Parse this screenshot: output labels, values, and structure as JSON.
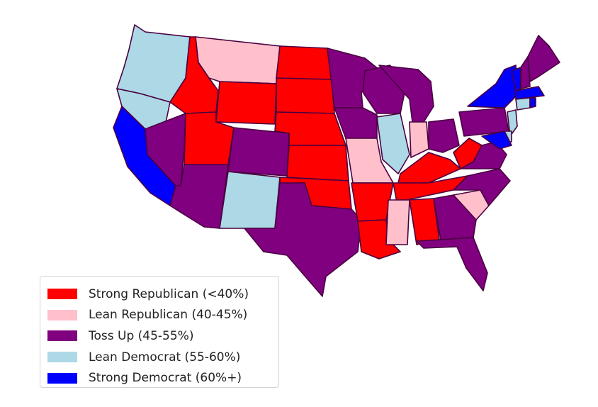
{
  "colors": {
    "strong_rep": "#ff0000",
    "lean_rep": "#ffc0cb",
    "toss_up": "#800080",
    "lean_dem": "#add8e6",
    "strong_dem": "#0000ff",
    "border": "#4a0040"
  },
  "legend": {
    "items": [
      {
        "label": "Strong Republican (<40%)",
        "color": "#ff0000"
      },
      {
        "label": "Lean Republican (40-45%)",
        "color": "#ffc0cb"
      },
      {
        "label": "Toss Up (45-55%)",
        "color": "#800080"
      },
      {
        "label": "Lean Democrat (55-60%)",
        "color": "#add8e6"
      },
      {
        "label": "Strong Democrat (60%+)",
        "color": "#0000ff"
      }
    ]
  },
  "states": {
    "WA": "lean_dem",
    "OR": "lean_dem",
    "CA": "strong_dem",
    "NV": "toss_up",
    "ID": "strong_rep",
    "MT": "lean_rep",
    "WY": "strong_rep",
    "UT": "strong_rep",
    "AZ": "toss_up",
    "CO": "toss_up",
    "NM": "lean_dem",
    "ND": "strong_rep",
    "SD": "strong_rep",
    "NE": "strong_rep",
    "KS": "strong_rep",
    "OK": "strong_rep",
    "TX": "toss_up",
    "MN": "toss_up",
    "IA": "toss_up",
    "MO": "lean_rep",
    "AR": "strong_rep",
    "LA": "strong_rep",
    "WI": "toss_up",
    "IL": "lean_dem",
    "MI": "toss_up",
    "IN": "lean_rep",
    "OH": "toss_up",
    "KY": "strong_rep",
    "TN": "strong_rep",
    "MS": "lean_rep",
    "AL": "strong_rep",
    "GA": "toss_up",
    "FL": "toss_up",
    "SC": "lean_rep",
    "NC": "toss_up",
    "VA": "toss_up",
    "WV": "strong_rep",
    "PA": "toss_up",
    "NY": "strong_dem",
    "VT": "strong_dem",
    "NH": "toss_up",
    "ME": "toss_up",
    "MA": "strong_dem",
    "CT": "lean_dem",
    "RI": "strong_dem",
    "NJ": "lean_dem",
    "DE": "lean_dem",
    "MD": "strong_dem"
  }
}
